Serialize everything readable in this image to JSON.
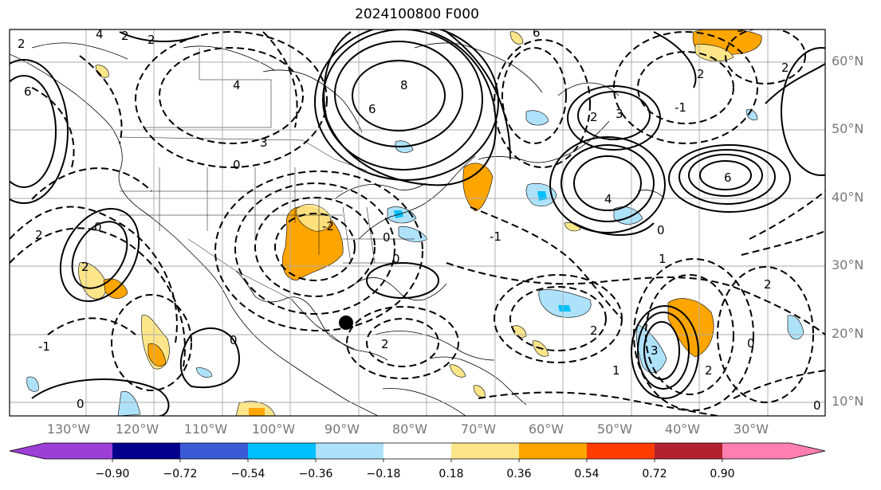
{
  "title": "2024100800 F000",
  "longitude_labels": [
    "130°W",
    "120°W",
    "110°W",
    "100°W",
    "90°W",
    "80°W",
    "70°W",
    "60°W",
    "50°W",
    "40°W",
    "30°W"
  ],
  "latitude_labels": [
    "60°N",
    "50°N",
    "40°N",
    "30°N",
    "20°N",
    "10°N"
  ],
  "colorbar": {
    "ticks": [
      "−0.90",
      "−0.72",
      "−0.54",
      "−0.36",
      "−0.18",
      "0.18",
      "0.36",
      "0.54",
      "0.72",
      "0.90"
    ],
    "colors": [
      "#9b3fd6",
      "#05008c",
      "#3b5bd6",
      "#00c0ff",
      "#aee2fb",
      "#ffffff",
      "#fde68a",
      "#ffa500",
      "#ff3c00",
      "#b2222e",
      "#ff80b0"
    ]
  },
  "contour_labels": [
    "4",
    "2",
    "2",
    "4",
    "6",
    "6",
    "8",
    "6",
    "3",
    "3",
    "4",
    "6",
    "2",
    "2",
    "0",
    "0",
    "2",
    "-1",
    "3",
    "1",
    "2",
    "0",
    "0",
    "-2",
    "2",
    "-1",
    "0",
    "2",
    "0",
    "1",
    "2",
    "3",
    "2",
    "2",
    "0",
    "-1",
    "2",
    "0",
    "0"
  ],
  "marker": {
    "type": "filled-circle",
    "color": "#000000"
  }
}
